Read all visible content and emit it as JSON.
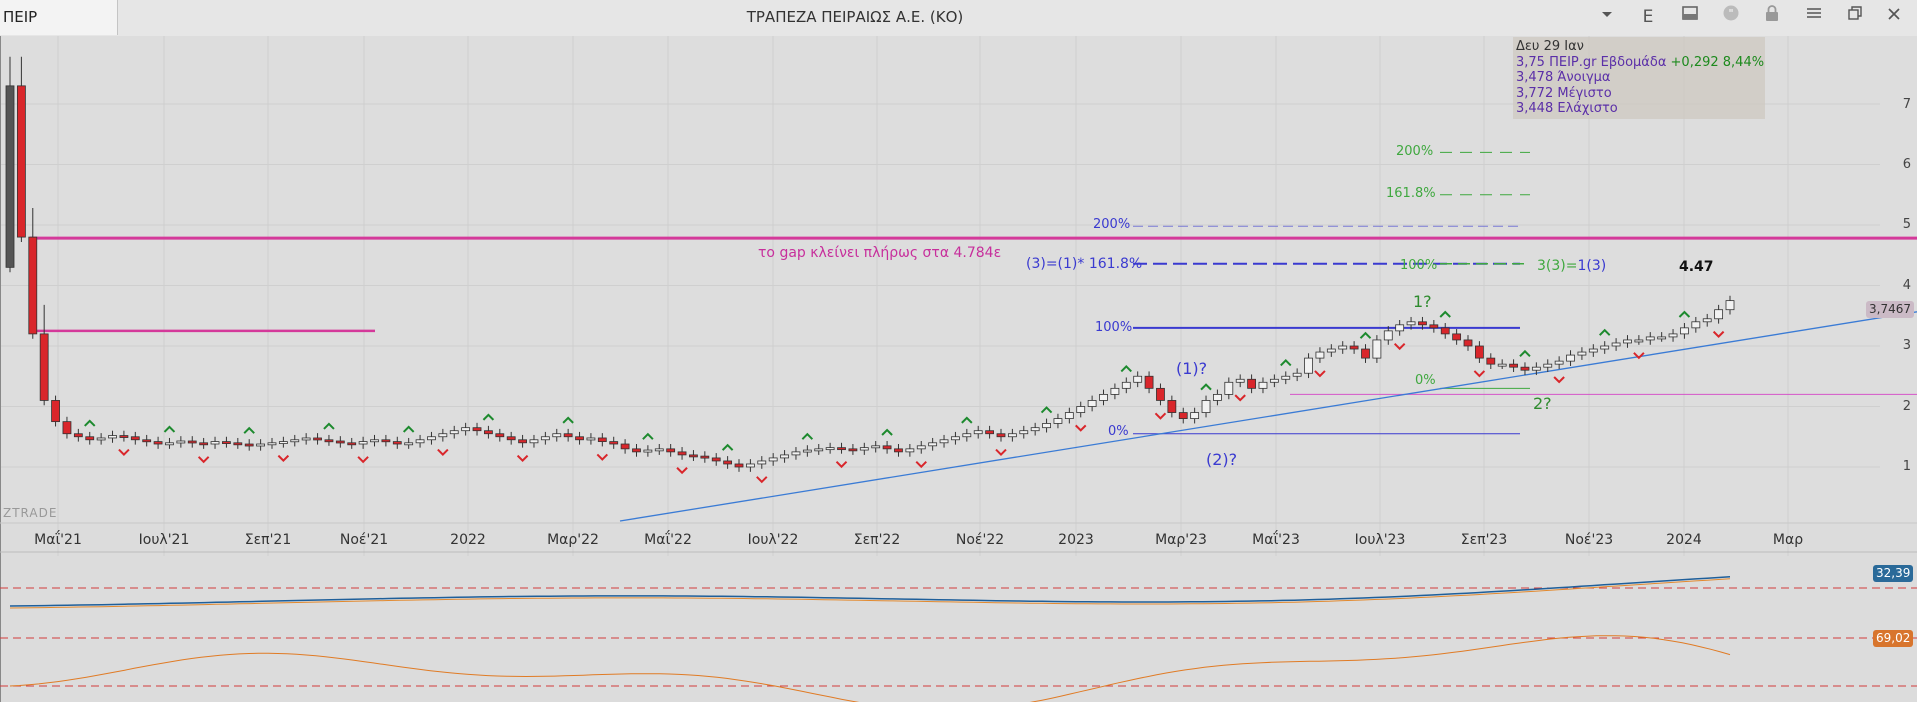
{
  "window": {
    "tab_label": "ΠΕΙΡ",
    "title": "ΤΡΑΠΕΖΑ ΠΕΙΡΑΙΩΣ Α.Ε. (ΚΟ)",
    "buttons": {
      "e_label": "E",
      "icons": [
        "chevron-down-icon",
        "layout-icon",
        "quote-icon",
        "lock-icon",
        "menu-icon",
        "restore-icon",
        "close-icon"
      ]
    }
  },
  "info": {
    "date": "Δευ 29 Ιαν",
    "price_line": "3,75 ΠΕΙΡ.gr Εβδομάδα",
    "change": "+0,292 8,44%",
    "open": "3,478 Άνοιγμα",
    "high": "3,772 Μέγιστο",
    "low": "3,448 Ελάχιστο"
  },
  "annotations": {
    "gap_text": "το gap κλείνει πλήρως στα 4.784ε",
    "wave3_blue": "(3)=(1)* 161.8%",
    "wave3_green_a": "3(3)=",
    "wave3_green_b": "1(3)",
    "target": "4.47",
    "w1": "(1)?",
    "w2": "(2)?",
    "w1g": "1?",
    "w2g": "2?",
    "fib_blue": [
      "200%",
      "100%",
      "0%"
    ],
    "fib_green": [
      "200%",
      "161.8%",
      "100%",
      "0%"
    ]
  },
  "price_badge": "3,7467",
  "ind1_badge": "32,39",
  "ind2_badge": "69,02",
  "y_axis": [
    "7",
    "6",
    "5",
    "4",
    "3",
    "2",
    "1"
  ],
  "x_axis": [
    "Μαΐ'21",
    "Ιουλ'21",
    "Σεπ'21",
    "Νοέ'21",
    "2022",
    "Μαρ'22",
    "Μαΐ'22",
    "Ιουλ'22",
    "Σεπ'22",
    "Νοέ'22",
    "2023",
    "Μαρ'23",
    "Μαΐ'23",
    "Ιουλ'23",
    "Σεπ'23",
    "Νοέ'23",
    "2024",
    "Μαρ"
  ],
  "watermark": "ZTRADE",
  "colors": {
    "up": "#f2f2f2",
    "down": "#d9262b",
    "trend": "#3a7bd5",
    "magenta": "#d4399a",
    "fib_blue": "#3a3ad0",
    "fib_green": "#3fa83f",
    "arrow_up": "#1d8a2e",
    "arrow_down": "#d9262b"
  },
  "chart_data": {
    "type": "candlestick",
    "series": [
      {
        "name": "ΠΕΙΡ.gr Εβδομάδα",
        "close": [
          7.3,
          4.8,
          3.2,
          2.1,
          1.75,
          1.55,
          1.5,
          1.45,
          1.48,
          1.52,
          1.5,
          1.45,
          1.42,
          1.38,
          1.4,
          1.43,
          1.4,
          1.38,
          1.42,
          1.4,
          1.38,
          1.35,
          1.38,
          1.4,
          1.42,
          1.45,
          1.48,
          1.45,
          1.43,
          1.4,
          1.38,
          1.42,
          1.45,
          1.42,
          1.38,
          1.4,
          1.45,
          1.5,
          1.55,
          1.6,
          1.65,
          1.6,
          1.55,
          1.5,
          1.45,
          1.4,
          1.45,
          1.5,
          1.55,
          1.5,
          1.45,
          1.48,
          1.42,
          1.38,
          1.3,
          1.25,
          1.28,
          1.3,
          1.25,
          1.2,
          1.18,
          1.15,
          1.1,
          1.05,
          1.0,
          1.05,
          1.1,
          1.15,
          1.2,
          1.25,
          1.28,
          1.3,
          1.32,
          1.3,
          1.28,
          1.32,
          1.35,
          1.3,
          1.25,
          1.3,
          1.35,
          1.4,
          1.45,
          1.5,
          1.55,
          1.6,
          1.55,
          1.5,
          1.55,
          1.6,
          1.65,
          1.72,
          1.8,
          1.9,
          2.0,
          2.1,
          2.2,
          2.3,
          2.4,
          2.5,
          2.3,
          2.1,
          1.9,
          1.8,
          1.9,
          2.1,
          2.2,
          2.4,
          2.45,
          2.3,
          2.4,
          2.45,
          2.5,
          2.55,
          2.8,
          2.9,
          2.95,
          3.0,
          2.95,
          2.8,
          3.1,
          3.25,
          3.35,
          3.4,
          3.35,
          3.3,
          3.2,
          3.1,
          3.0,
          2.8,
          2.7,
          2.7,
          2.65,
          2.6,
          2.65,
          2.7,
          2.75,
          2.85,
          2.9,
          2.95,
          3.0,
          3.05,
          3.1,
          3.1,
          3.15,
          3.15,
          3.2,
          3.3,
          3.4,
          3.45,
          3.6,
          3.75
        ],
        "x_range": [
          "Μαΐ'21",
          "2024"
        ]
      }
    ],
    "xlabel": "",
    "ylabel": "",
    "ylim": [
      0.8,
      7.5
    ],
    "levels": {
      "gap": 4.784,
      "old_gap_top": 3.25,
      "fib_blue_200": 4.98,
      "fib_blue_161": 4.36,
      "fib_blue_100": 3.3,
      "fib_blue_0": 1.55,
      "fib_green_200": 6.2,
      "fib_green_161": 5.5,
      "fib_green_100": 4.36,
      "fib_green_0": 2.3,
      "magenta_support": 2.2
    },
    "grid": true
  }
}
